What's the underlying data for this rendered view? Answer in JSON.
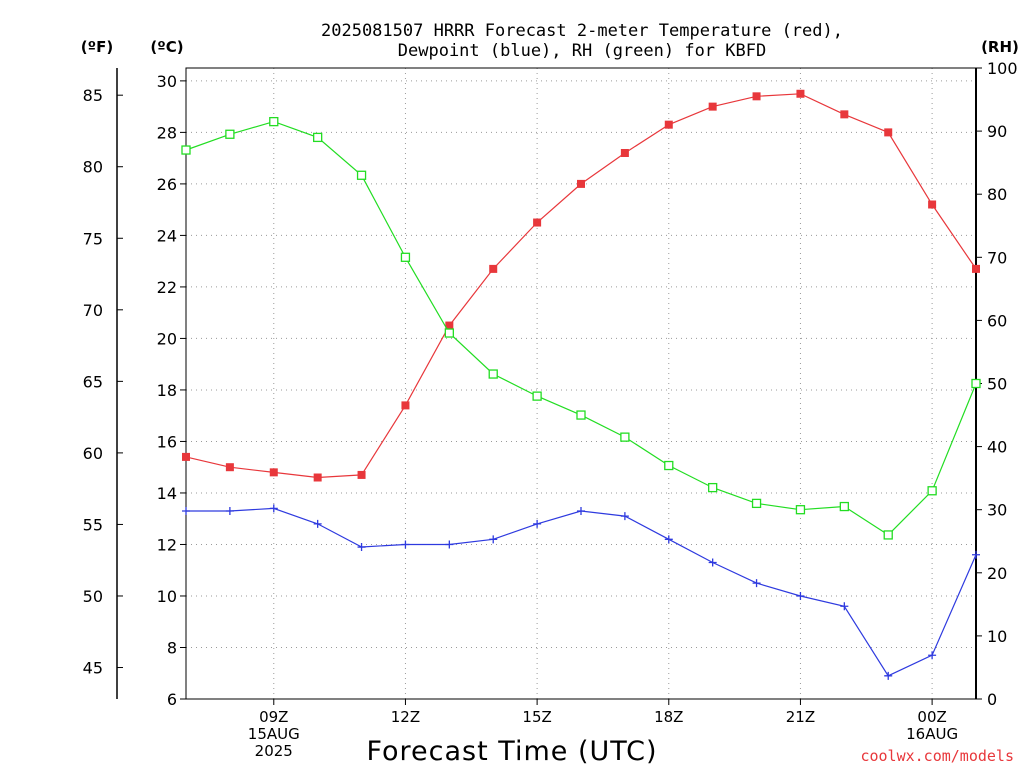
{
  "chart_data": {
    "type": "line",
    "title": "2025081507 HRRR Forecast 2-meter Temperature (red),",
    "subtitle": "Dewpoint (blue), RH (green) for KBFD",
    "xlabel": "Forecast Time (UTC)",
    "credit": "coolwx.com/models",
    "unit_labels": {
      "f": "(ºF)",
      "c": "(ºC)",
      "rh": "(RH)"
    },
    "x": [
      7,
      8,
      9,
      10,
      11,
      12,
      13,
      14,
      15,
      16,
      17,
      18,
      19,
      20,
      21,
      22,
      23,
      24,
      25
    ],
    "xlim": [
      7,
      25
    ],
    "x_ticks": [
      {
        "x": 9,
        "lines": [
          "09Z",
          "15AUG",
          "2025"
        ]
      },
      {
        "x": 12,
        "lines": [
          "12Z"
        ]
      },
      {
        "x": 15,
        "lines": [
          "15Z"
        ]
      },
      {
        "x": 18,
        "lines": [
          "18Z"
        ]
      },
      {
        "x": 21,
        "lines": [
          "21Z"
        ]
      },
      {
        "x": 24,
        "lines": [
          "00Z",
          "16AUG"
        ]
      }
    ],
    "ylim_c": [
      6,
      30.5
    ],
    "ylim_rh": [
      0,
      100
    ],
    "c_ticks": [
      6,
      8,
      10,
      12,
      14,
      16,
      18,
      20,
      22,
      24,
      26,
      28,
      30
    ],
    "f_ticks": [
      45,
      50,
      55,
      60,
      65,
      70,
      75,
      80,
      85
    ],
    "rh_ticks": [
      0,
      10,
      20,
      30,
      40,
      50,
      60,
      70,
      80,
      90,
      100
    ],
    "grid": true,
    "series": [
      {
        "key": "temp",
        "axis": "c",
        "marker": "filled-square",
        "color": "#e8373b",
        "values": [
          15.4,
          15.0,
          14.8,
          14.6,
          14.7,
          17.4,
          20.5,
          22.7,
          24.5,
          26.0,
          27.2,
          28.3,
          29.0,
          29.4,
          29.5,
          28.7,
          28.0,
          25.2,
          22.7
        ]
      },
      {
        "key": "dewpoint",
        "axis": "c",
        "marker": "plus",
        "color": "#2e3adf",
        "values": [
          13.3,
          13.3,
          13.4,
          12.8,
          11.9,
          12.0,
          12.0,
          12.2,
          12.8,
          13.3,
          13.1,
          12.2,
          11.3,
          10.5,
          10.0,
          9.6,
          6.9,
          7.7,
          11.6
        ]
      },
      {
        "key": "rh",
        "axis": "rh",
        "marker": "open-square",
        "color": "#22dd22",
        "values": [
          87,
          89.5,
          91.5,
          89,
          83,
          70,
          58,
          51.5,
          48,
          45,
          41.5,
          37,
          33.5,
          31,
          30,
          30.5,
          26,
          33,
          50
        ]
      }
    ]
  }
}
